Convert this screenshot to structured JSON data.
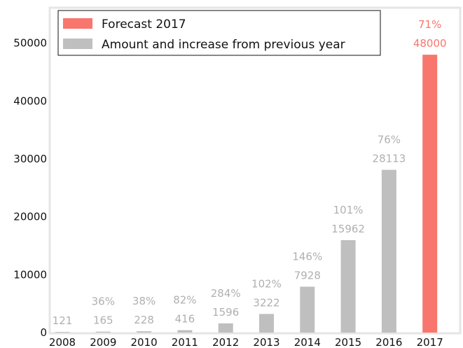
{
  "chart_data": {
    "type": "bar",
    "categories": [
      "2008",
      "2009",
      "2010",
      "2011",
      "2012",
      "2013",
      "2014",
      "2015",
      "2016",
      "2017"
    ],
    "values": [
      121,
      165,
      228,
      416,
      1596,
      3222,
      7928,
      15962,
      28113,
      48000
    ],
    "value_labels": [
      "121",
      "165",
      "228",
      "416",
      "1596",
      "3222",
      "7928",
      "15962",
      "28113",
      "48000"
    ],
    "growth_labels": [
      "",
      "36%",
      "38%",
      "82%",
      "284%",
      "102%",
      "146%",
      "101%",
      "76%",
      "71%"
    ],
    "forecast_index": 9,
    "ylim": [
      0,
      56000
    ],
    "yticks": [
      0,
      10000,
      20000,
      30000,
      40000,
      50000
    ],
    "ytick_labels": [
      "0",
      "10000",
      "20000",
      "30000",
      "40000",
      "50000"
    ],
    "title": "",
    "xlabel": "",
    "ylabel": "",
    "legend": {
      "position": "top-left",
      "items": [
        {
          "label": "Forecast 2017",
          "color": "#f8766d"
        },
        {
          "label": "Amount and increase from previous year",
          "color": "#bfbfbf"
        }
      ]
    },
    "colors": {
      "forecast": "#f8766d",
      "actual": "#bfbfbf",
      "actual_label": "#b0b0b0",
      "forecast_label": "#f8766d"
    }
  }
}
